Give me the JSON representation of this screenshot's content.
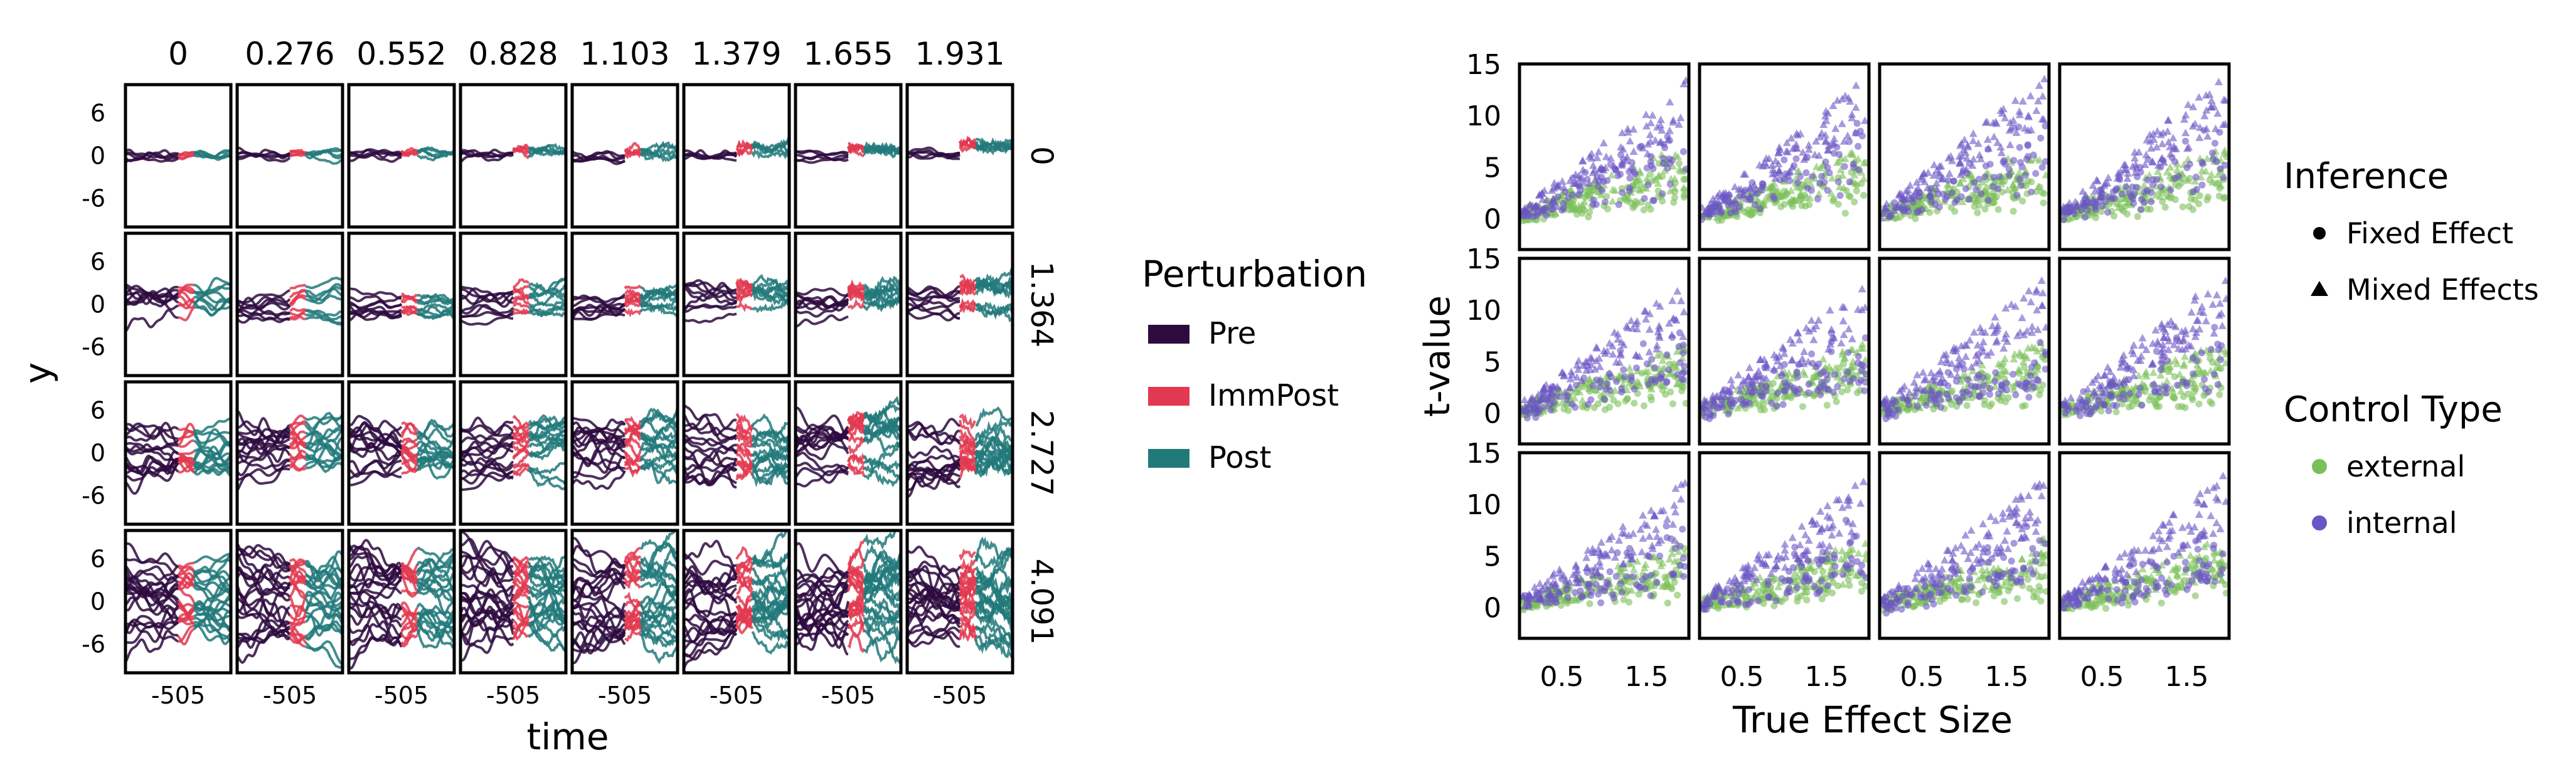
{
  "chart_data": [
    {
      "type": "line",
      "xlabel": "time",
      "ylabel": "y",
      "facet_columns": [
        0,
        0.276,
        0.552,
        0.828,
        1.103,
        1.379,
        1.655,
        1.931
      ],
      "facet_column_labels": [
        "0",
        "0.276",
        "0.552",
        "0.828",
        "1.103",
        "1.379",
        "1.655",
        "1.931"
      ],
      "facet_rows": [
        0,
        1.364,
        2.727,
        4.091
      ],
      "facet_row_labels": [
        "0",
        "1.364",
        "2.727",
        "4.091"
      ],
      "x_ticks": [
        -5,
        0,
        5
      ],
      "x_tick_labels": [
        "-5",
        "0",
        "5"
      ],
      "y_ticks": [
        6,
        0,
        -6
      ],
      "y_tick_labels": [
        "6",
        "0",
        "-6"
      ],
      "xlim": [
        -10,
        10
      ],
      "ylim": [
        -10,
        10
      ],
      "segments": {
        "Pre": [
          -10,
          0
        ],
        "ImmPost": [
          0,
          3
        ],
        "Post": [
          3,
          10
        ]
      },
      "lines_per_panel": [
        5,
        9,
        15,
        22
      ],
      "row_spread": [
        0.6,
        1.9,
        3.8,
        5.6
      ],
      "legend": {
        "title": "Perturbation",
        "placement": "right",
        "entries": [
          {
            "name": "Pre",
            "color": "#2e0b3f"
          },
          {
            "name": "ImmPost",
            "color": "#e23950"
          },
          {
            "name": "Post",
            "color": "#21797a"
          }
        ]
      },
      "grid": false
    },
    {
      "type": "scatter",
      "xlabel": "True Effect Size",
      "ylabel": "t-value",
      "facet_grid": [
        3,
        4
      ],
      "x_ticks": [
        0.5,
        1.5
      ],
      "x_tick_labels": [
        "0.5",
        "1.5"
      ],
      "xlim": [
        0,
        2
      ],
      "y_ticks": [
        15,
        10,
        5,
        0
      ],
      "y_tick_labels": [
        "15",
        "10",
        "5",
        "0"
      ],
      "ylim": [
        -3,
        15
      ],
      "series": [
        {
          "name": "external",
          "color": "#7bbf59",
          "slope_mixed": 2.4,
          "slope_fixed": 2.0
        },
        {
          "name": "internal",
          "color": "#6a55c4",
          "slope_mixed": 5.4,
          "slope_fixed": 3.8
        }
      ],
      "legend": {
        "placement": "right",
        "inference_title": "Inference",
        "inference_entries": [
          "Fixed Effect",
          "Mixed Effects"
        ],
        "control_title": "Control Type",
        "control_entries": [
          "external",
          "internal"
        ]
      },
      "grid": false
    }
  ],
  "colors": {
    "pre": "#2e0b3f",
    "immpost": "#e23950",
    "post": "#21797a",
    "external": "#7bbf59",
    "internal": "#6a55c4"
  }
}
